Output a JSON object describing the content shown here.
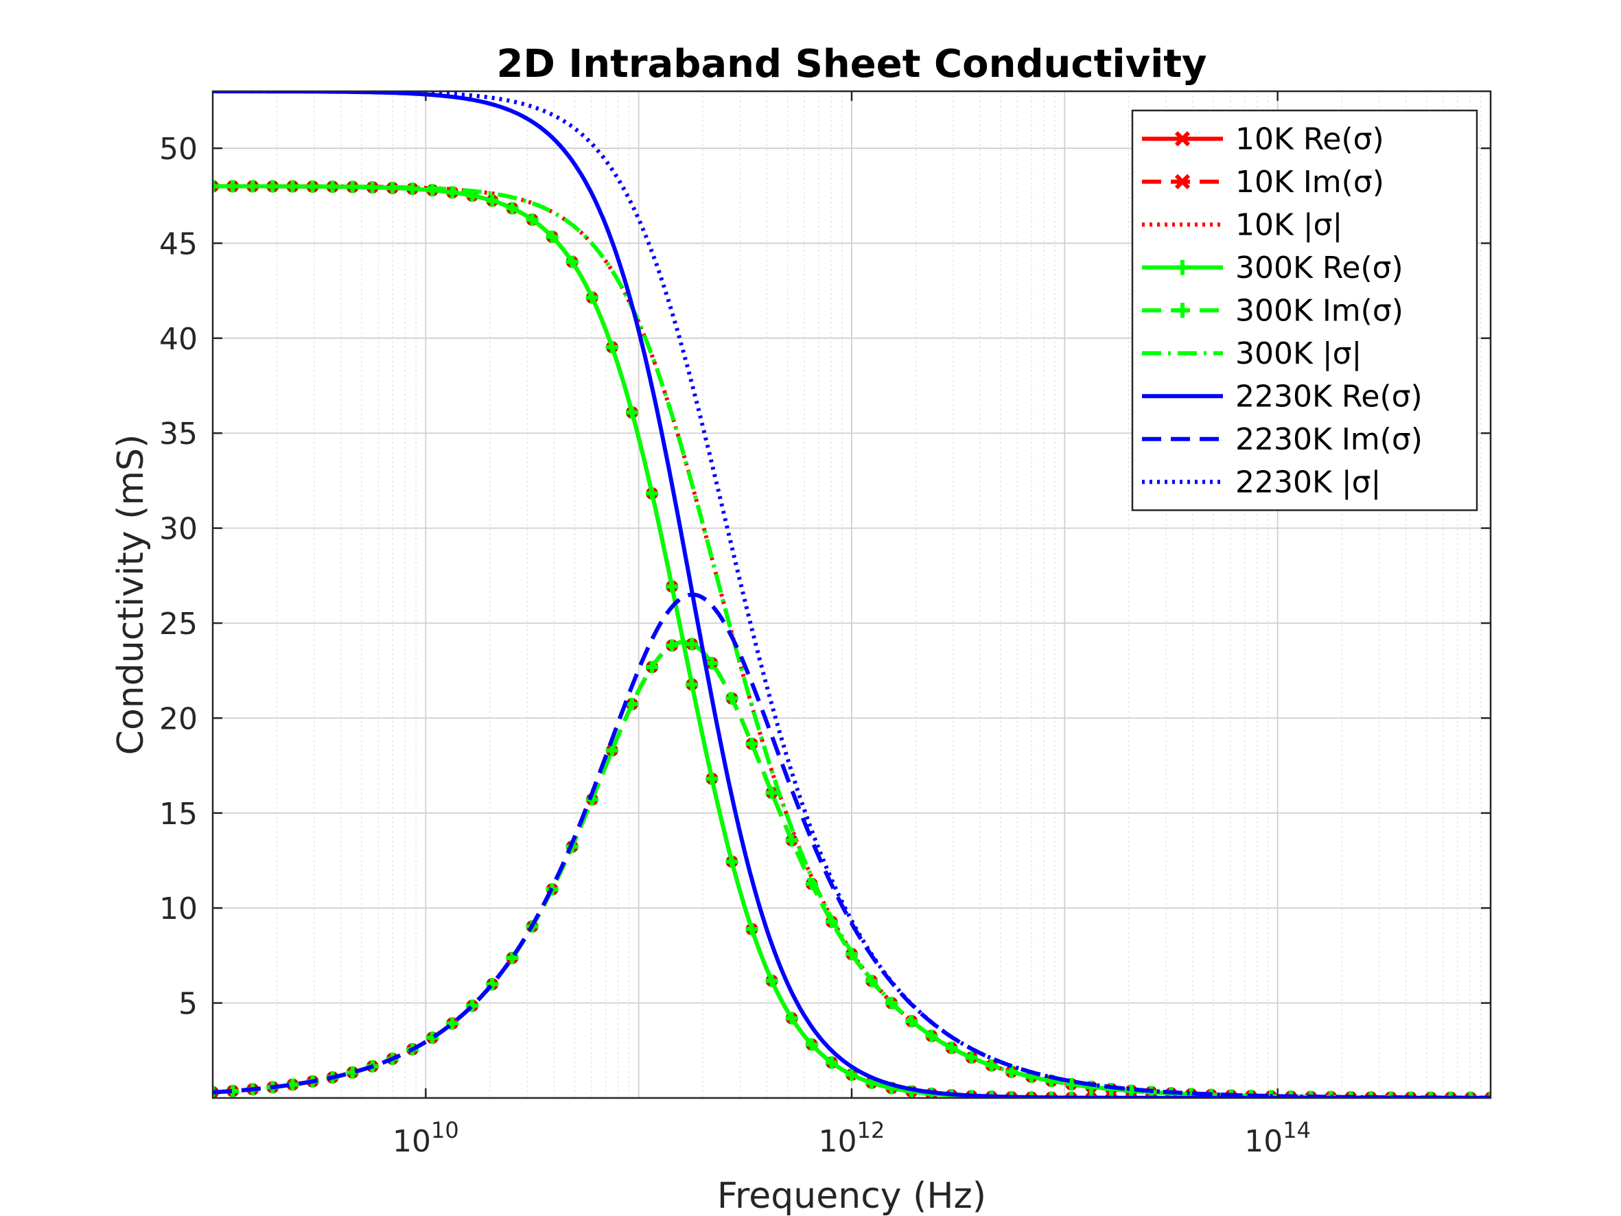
{
  "chart_data": {
    "type": "line",
    "title": "2D Intraband Sheet Conductivity",
    "xlabel": "Frequency (Hz)",
    "ylabel": "Conductivity (mS)",
    "x_scale": "log",
    "xlim": [
      1000000000.0,
      1000000000000000.0
    ],
    "ylim": [
      0,
      53
    ],
    "x_ticks": [
      {
        "value": 10000000000.0,
        "label": "10^10"
      },
      {
        "value": 1000000000000.0,
        "label": "10^12"
      },
      {
        "value": 100000000000000.0,
        "label": "10^14"
      }
    ],
    "y_ticks": [
      5,
      10,
      15,
      20,
      25,
      30,
      35,
      40,
      45,
      50
    ],
    "grid": true,
    "minor_grid": true,
    "legend_position": "top-right",
    "model": {
      "form": "Drude",
      "x": "frequency (Hz)",
      "Re": "s0 / (1 + (f/fc)^2)",
      "Im": "s0 * (f/fc) / (1 + (f/fc)^2)",
      "Abs": "s0 / sqrt(1 + (f/fc)^2)"
    },
    "series": [
      {
        "name": "10K Re(σ)",
        "temperature": "10K",
        "quantity": "Re",
        "s0": 48.0,
        "fc": 162000000000.0,
        "color": "#ff0000",
        "style": "solid",
        "marker": "x"
      },
      {
        "name": "10K Im(σ)",
        "temperature": "10K",
        "quantity": "Im",
        "s0": 48.0,
        "fc": 162000000000.0,
        "color": "#ff0000",
        "style": "dashed",
        "marker": "x"
      },
      {
        "name": "10K |σ|",
        "temperature": "10K",
        "quantity": "Abs",
        "s0": 48.0,
        "fc": 162000000000.0,
        "color": "#ff0000",
        "style": "dotted",
        "marker": "none"
      },
      {
        "name": "300K Re(σ)",
        "temperature": "300K",
        "quantity": "Re",
        "s0": 48.0,
        "fc": 162000000000.0,
        "color": "#00ff00",
        "style": "solid",
        "marker": "+"
      },
      {
        "name": "300K Im(σ)",
        "temperature": "300K",
        "quantity": "Im",
        "s0": 48.0,
        "fc": 162000000000.0,
        "color": "#00ff00",
        "style": "dashed",
        "marker": "+"
      },
      {
        "name": "300K |σ|",
        "temperature": "300K",
        "quantity": "Abs",
        "s0": 48.0,
        "fc": 162000000000.0,
        "color": "#00ff00",
        "style": "dashdot",
        "marker": "none"
      },
      {
        "name": "2230K Re(σ)",
        "temperature": "2230K",
        "quantity": "Re",
        "s0": 53.0,
        "fc": 179000000000.0,
        "color": "#0000ff",
        "style": "solid",
        "marker": "none"
      },
      {
        "name": "2230K Im(σ)",
        "temperature": "2230K",
        "quantity": "Im",
        "s0": 53.0,
        "fc": 179000000000.0,
        "color": "#0000ff",
        "style": "dashed",
        "marker": "none"
      },
      {
        "name": "2230K |σ|",
        "temperature": "2230K",
        "quantity": "Abs",
        "s0": 53.0,
        "fc": 179000000000.0,
        "color": "#0000ff",
        "style": "dotted",
        "marker": "none"
      }
    ]
  }
}
